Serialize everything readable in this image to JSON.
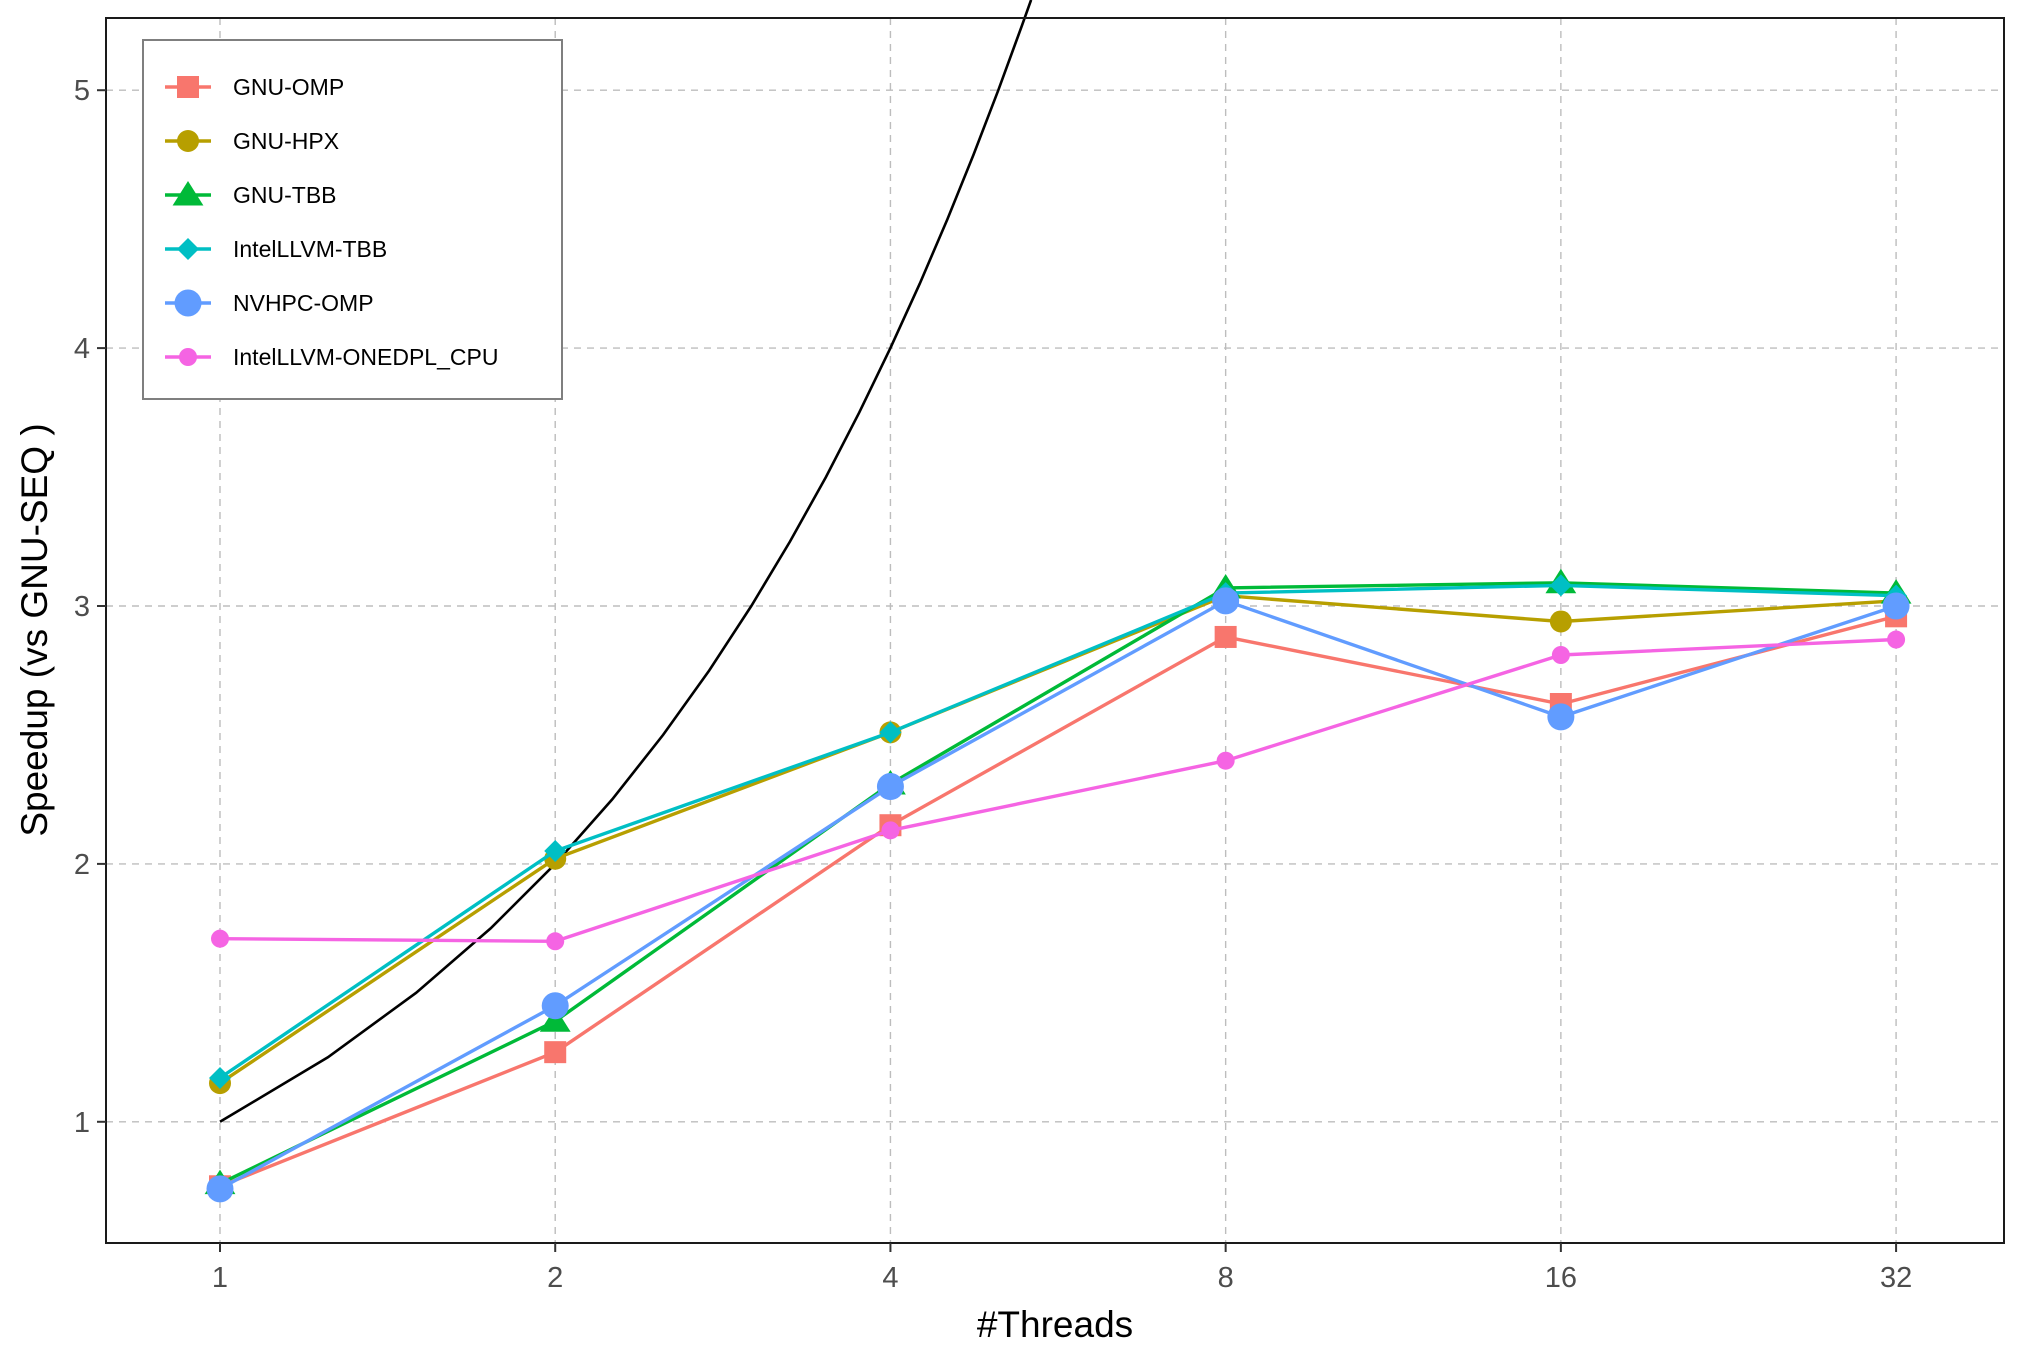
{
  "chart_data": {
    "type": "line",
    "xlabel": "#Threads",
    "ylabel": "Speedup (vs  GNU-SEQ )",
    "x_scale": "log2",
    "x": [
      1,
      2,
      4,
      8,
      16,
      32
    ],
    "x_ticks": [
      "1",
      "2",
      "4",
      "8",
      "16",
      "32"
    ],
    "y_ticks": [
      "1",
      "2",
      "3",
      "4",
      "5"
    ],
    "xlim": [
      0.79,
      40.0
    ],
    "ylim": [
      0.53,
      5.28
    ],
    "grid": true,
    "grid_style": "dashed",
    "legend_position": "top-left",
    "series": [
      {
        "name": "GNU-OMP",
        "color": "#F8766D",
        "marker": "square",
        "values": [
          0.75,
          1.27,
          2.15,
          2.88,
          2.62,
          2.96
        ]
      },
      {
        "name": "GNU-HPX",
        "color": "#B79F00",
        "marker": "circle",
        "values": [
          1.15,
          2.02,
          2.51,
          3.04,
          2.94,
          3.02
        ]
      },
      {
        "name": "GNU-TBB",
        "color": "#00BA38",
        "marker": "triangle",
        "values": [
          0.76,
          1.39,
          2.31,
          3.07,
          3.09,
          3.05
        ]
      },
      {
        "name": "IntelLLVM-TBB",
        "color": "#00BFC4",
        "marker": "diamond",
        "values": [
          1.17,
          2.05,
          2.51,
          3.05,
          3.08,
          3.04
        ]
      },
      {
        "name": "NVHPC-OMP",
        "color": "#619CFF",
        "marker": "big-circle",
        "values": [
          0.74,
          1.45,
          2.3,
          3.02,
          2.57,
          3.0
        ]
      },
      {
        "name": "IntelLLVM-ONEDPL_CPU",
        "color": "#F564E3",
        "marker": "small-circle",
        "values": [
          1.71,
          1.7,
          2.13,
          2.4,
          2.81,
          2.87
        ]
      }
    ],
    "reference_curve": {
      "color": "#000000",
      "x": [
        1,
        1.25,
        1.5,
        1.75,
        2,
        2.25,
        2.5,
        2.75,
        3,
        3.25,
        3.5,
        3.75,
        4,
        4.25,
        4.5,
        4.75,
        5,
        5.25,
        5.35
      ],
      "values": [
        1.0,
        1.25,
        1.5,
        1.75,
        2.0,
        2.25,
        2.5,
        2.75,
        3.0,
        3.25,
        3.5,
        3.75,
        4.0,
        4.25,
        4.5,
        4.75,
        5.0,
        5.25,
        5.35
      ]
    }
  }
}
